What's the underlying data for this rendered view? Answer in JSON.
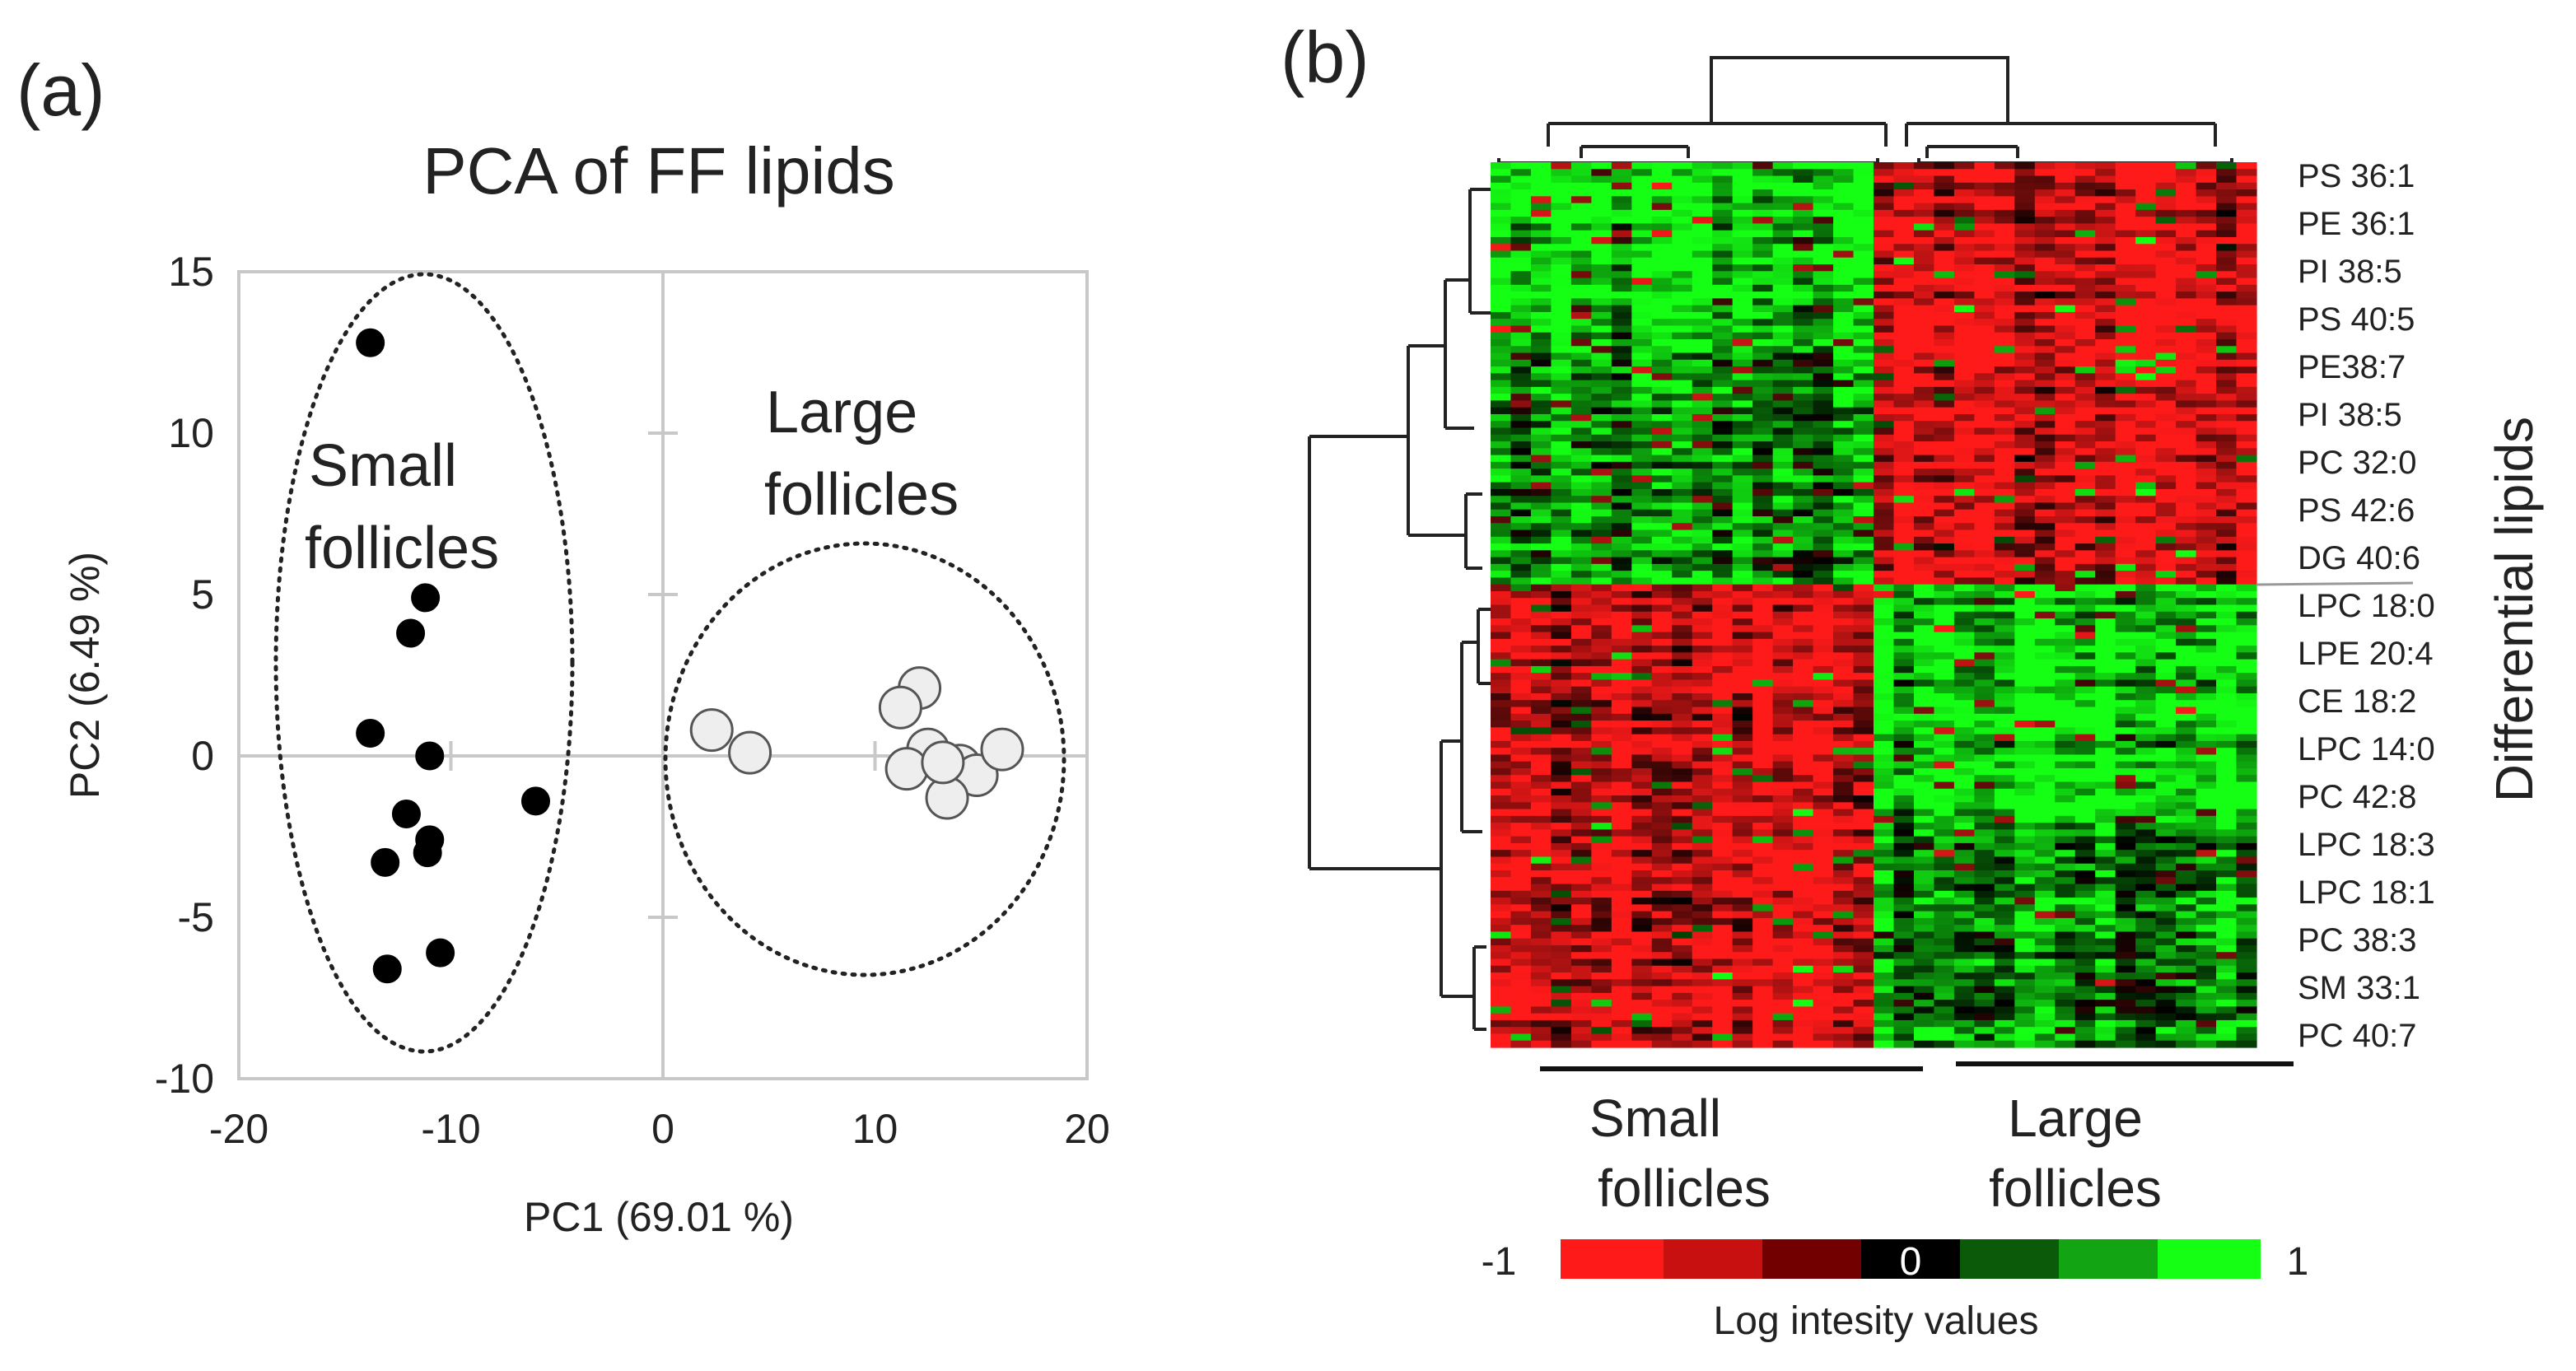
{
  "panel_a_label": "(a)",
  "panel_b_label": "(b)",
  "chart_data": [
    {
      "type": "scatter",
      "title": "PCA of  FF lipids",
      "xlabel": "PC1 (69.01 %)",
      "ylabel": "PC2 (6.49 %)",
      "xlim": [
        -20,
        20
      ],
      "ylim": [
        -10,
        15
      ],
      "xticks": [
        "-20",
        "-10",
        "0",
        "10",
        "20"
      ],
      "yticks": [
        "15",
        "10",
        "5",
        "0",
        "-5",
        "-10"
      ],
      "annotations": {
        "small_line1": "Small",
        "small_line2": "follicles",
        "large_line1": "Large",
        "large_line2": "follicles"
      },
      "series": [
        {
          "name": "Small follicles",
          "color": "#000000",
          "points": [
            [
              -13.8,
              12.8
            ],
            [
              -11.2,
              4.9
            ],
            [
              -11.9,
              3.8
            ],
            [
              -13.8,
              0.7
            ],
            [
              -11.0,
              0.0
            ],
            [
              -6.0,
              -1.4
            ],
            [
              -12.1,
              -1.8
            ],
            [
              -11.0,
              -2.6
            ],
            [
              -13.1,
              -3.3
            ],
            [
              -11.1,
              -3.0
            ],
            [
              -13.0,
              -6.6
            ],
            [
              -10.5,
              -6.1
            ]
          ]
        },
        {
          "name": "Large follicles",
          "color": "#eeeeee",
          "points": [
            [
              2.3,
              0.8
            ],
            [
              4.1,
              0.1
            ],
            [
              12.1,
              2.1
            ],
            [
              11.2,
              1.5
            ],
            [
              12.5,
              0.2
            ],
            [
              11.5,
              -0.4
            ],
            [
              14.0,
              -0.3
            ],
            [
              14.8,
              -0.6
            ],
            [
              16.0,
              0.2
            ],
            [
              13.4,
              -1.3
            ],
            [
              13.2,
              -0.2
            ]
          ]
        }
      ]
    },
    {
      "type": "heatmap",
      "ylabel": "Differential lipids",
      "row_labels": [
        "PS 36:1",
        "PE 36:1",
        "PI 38:5",
        "PS 40:5",
        "PE38:7",
        "PI 38:5",
        "PC 32:0",
        "PS 42:6",
        "DG 40:6",
        "LPC 18:0",
        "LPE 20:4",
        "CE 18:2",
        "LPC 14:0",
        "PC 42:8",
        "LPC 18:3",
        "LPC 18:1",
        "PC 38:3",
        "SM 33:1",
        "PC 40:7"
      ],
      "groups": [
        {
          "line1": "Small",
          "line2": "follicles"
        },
        {
          "line1": "Large",
          "line2": "follicles"
        }
      ],
      "colorbar": {
        "min_label": "-1",
        "mid_label": "0",
        "max_label": "1",
        "title": "Log intesity values",
        "low_color": "#ff1a1a",
        "mid_color": "#000000",
        "high_color": "#14ff14"
      }
    }
  ]
}
